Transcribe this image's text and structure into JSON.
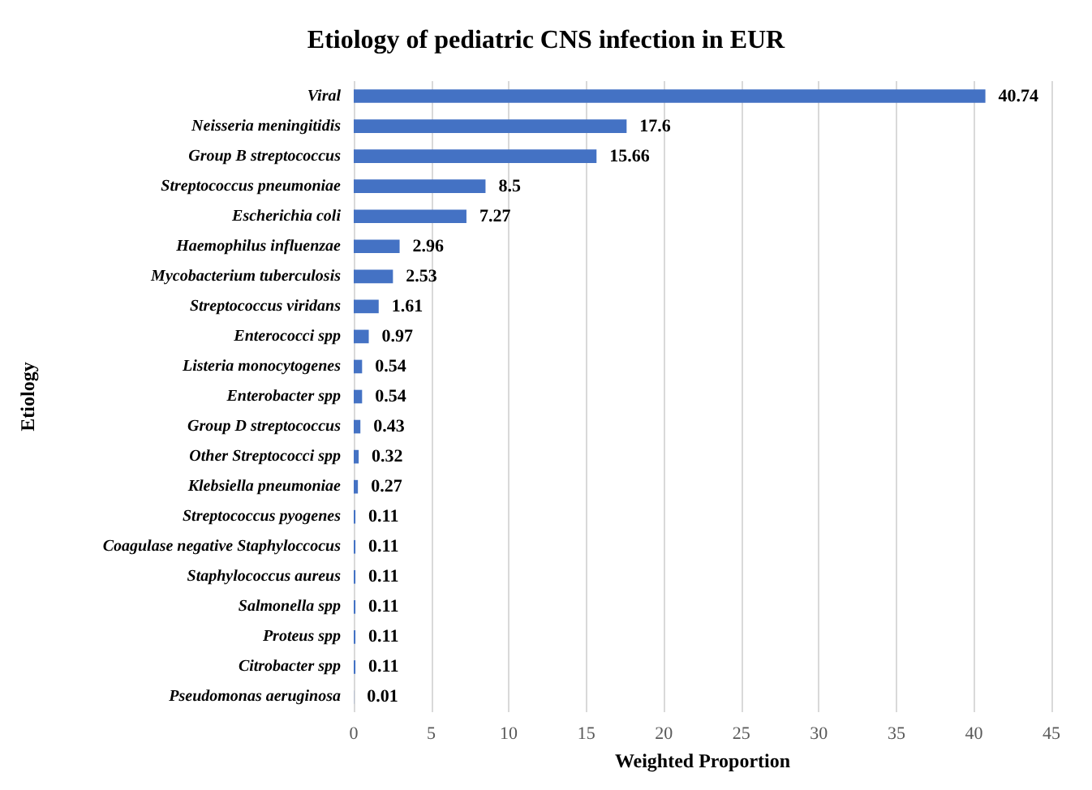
{
  "chart_data": {
    "type": "bar",
    "orientation": "horizontal",
    "title": "Etiology of pediatric CNS infection in EUR",
    "xlabel": "Weighted Proportion",
    "ylabel": "Etiology",
    "categories": [
      "Viral",
      "Neisseria meningitidis",
      "Group B streptococcus",
      "Streptococcus pneumoniae",
      "Escherichia coli",
      "Haemophilus influenzae",
      "Mycobacterium tuberculosis",
      "Streptococcus viridans",
      "Enterococci spp",
      "Listeria monocytogenes",
      "Enterobacter spp",
      "Group D streptococcus",
      "Other Streptococci spp",
      "Klebsiella pneumoniae",
      "Streptococcus pyogenes",
      "Coagulase negative Staphyloccocus",
      "Staphylococcus aureus",
      "Salmonella spp",
      "Proteus spp",
      "Citrobacter spp",
      "Pseudomonas aeruginosa"
    ],
    "values": [
      40.74,
      17.6,
      15.66,
      8.5,
      7.27,
      2.96,
      2.53,
      1.61,
      0.97,
      0.54,
      0.54,
      0.43,
      0.32,
      0.27,
      0.11,
      0.11,
      0.11,
      0.11,
      0.11,
      0.11,
      0.01
    ],
    "color": "#4472c4",
    "xlim": [
      0,
      45
    ],
    "xticks": [
      0,
      5,
      10,
      15,
      20,
      25,
      30,
      35,
      40,
      45
    ],
    "grid": "x",
    "data_labels": true
  }
}
